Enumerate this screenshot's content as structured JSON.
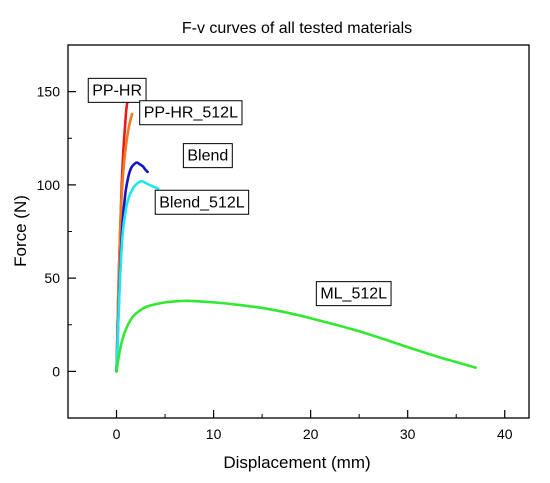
{
  "chart_data": {
    "type": "line",
    "title": "F-v curves of all tested materials",
    "xlabel": "Displacement (mm)",
    "ylabel": "Force (N)",
    "xlim": [
      -5,
      42.5
    ],
    "ylim": [
      -25,
      175
    ],
    "x_ticks": [
      0,
      10,
      20,
      30,
      40
    ],
    "y_ticks": [
      0,
      50,
      100,
      150
    ],
    "grid": false,
    "legend": "none",
    "series": [
      {
        "name": "PP-HR",
        "color": "#e81a1a",
        "x": [
          0,
          0.25,
          0.5,
          0.7,
          0.9,
          1.0,
          1.1
        ],
        "y": [
          0,
          55,
          95,
          118,
          133,
          140,
          144
        ]
      },
      {
        "name": "PP-HR_512L",
        "color": "#f07a24",
        "x": [
          0,
          0.2,
          0.4,
          0.6,
          0.8,
          1.0,
          1.2,
          1.4,
          1.6
        ],
        "y": [
          0,
          45,
          80,
          100,
          113,
          122,
          129,
          134,
          138
        ]
      },
      {
        "name": "Blend",
        "color": "#1515c8",
        "x": [
          0,
          0.3,
          0.6,
          0.9,
          1.2,
          1.5,
          1.8,
          2.1,
          2.4,
          2.7,
          3.0,
          3.2
        ],
        "y": [
          0,
          45,
          78,
          95,
          104,
          109,
          111,
          112,
          111,
          110,
          108,
          107
        ]
      },
      {
        "name": "Blend_512L",
        "color": "#1ee6f0",
        "x": [
          0,
          0.3,
          0.6,
          1.0,
          1.4,
          1.8,
          2.2,
          2.6,
          3.0,
          3.4,
          3.8,
          4.3
        ],
        "y": [
          0,
          42,
          72,
          88,
          95,
          99,
          101,
          102,
          101,
          100,
          99,
          98
        ]
      },
      {
        "name": "ML_512L",
        "color": "#32e832",
        "x": [
          0,
          0.3,
          0.6,
          1.0,
          1.5,
          2.0,
          3.0,
          4.0,
          5.0,
          6.0,
          7.0,
          8.0,
          10,
          12,
          15,
          18,
          20,
          22,
          25,
          28,
          30,
          33,
          35,
          37
        ],
        "y": [
          0,
          10,
          17,
          23,
          28,
          31,
          34.5,
          36,
          37,
          37.5,
          37.8,
          37.7,
          37,
          36,
          34,
          31,
          28.5,
          25.8,
          21.5,
          16.5,
          13,
          8,
          5,
          2
        ]
      }
    ],
    "annotations": [
      {
        "text": "PP-HR",
        "series": "PP-HR"
      },
      {
        "text": "PP-HR_512L",
        "series": "PP-HR_512L"
      },
      {
        "text": "Blend",
        "series": "Blend"
      },
      {
        "text": "Blend_512L",
        "series": "Blend_512L"
      },
      {
        "text": "ML_512L",
        "series": "ML_512L"
      }
    ]
  }
}
